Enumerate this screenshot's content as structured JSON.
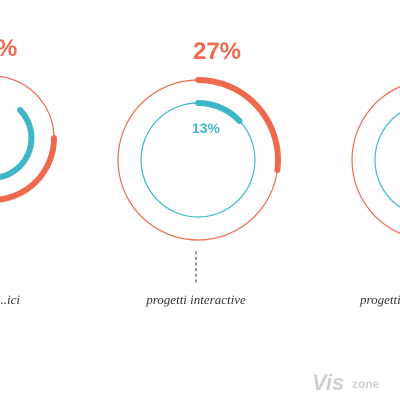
{
  "colors": {
    "outer": "#ef6a4c",
    "inner": "#3db7c8",
    "dots": "#777777",
    "label": "#333333",
    "watermark": "#d0d0d0"
  },
  "chart_data": {
    "type": "radial-progress",
    "title": "",
    "series": [
      {
        "name": "",
        "color": "#ef6a4c"
      },
      {
        "name": "",
        "color": "#3db7c8"
      }
    ],
    "groups": [
      {
        "label": "...ici",
        "outer_value": null,
        "outer_text": "%",
        "inner_value": null,
        "inner_text": ""
      },
      {
        "label": "progetti interactive",
        "outer_value": 27,
        "outer_text": "27%",
        "inner_value": 13,
        "inner_text": "13%"
      },
      {
        "label": "progetti",
        "outer_value": null,
        "outer_text": "",
        "inner_value": null,
        "inner_text": ""
      }
    ]
  },
  "watermark": {
    "brand": "Vis",
    "suffix": "zone"
  }
}
